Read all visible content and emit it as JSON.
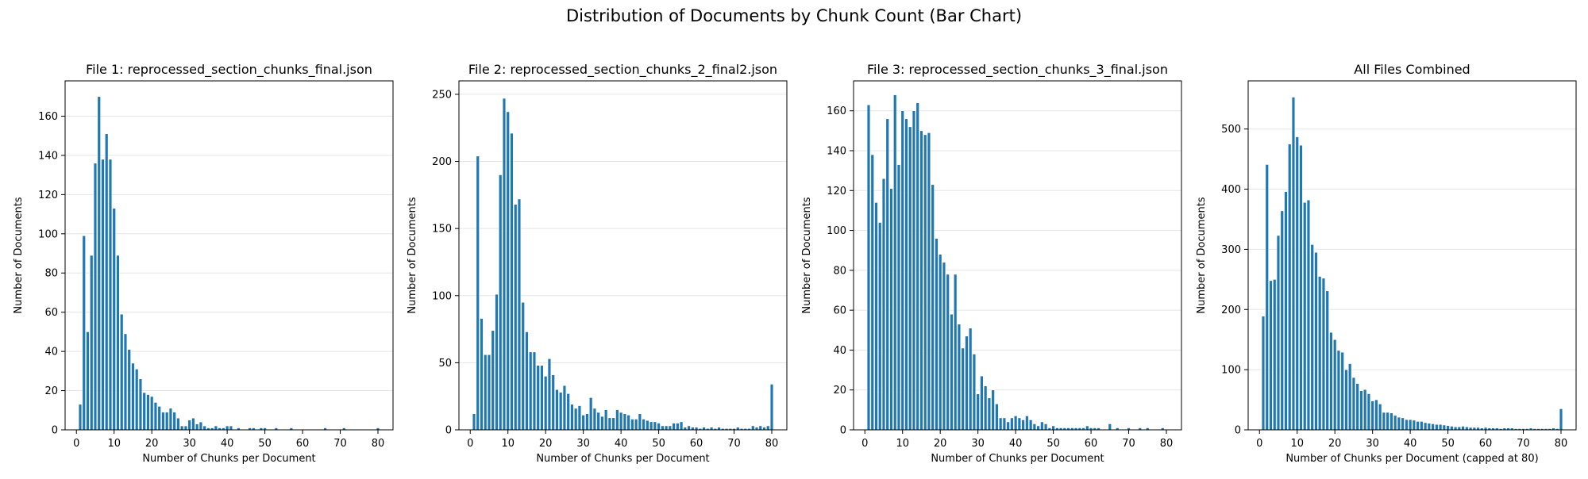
{
  "figure": {
    "title": "Distribution of Documents by Chunk Count (Bar Chart)",
    "bar_color": "#1f77b4",
    "grid_color": "#e5e5e5"
  },
  "chart_data": [
    {
      "type": "bar",
      "title": "File 1: reprocessed_section_chunks_final.json",
      "xlabel": "Number of Chunks per Document",
      "ylabel": "Number of Documents",
      "xlim": [
        -3,
        84
      ],
      "ylim": [
        0,
        178
      ],
      "xticks": [
        0,
        10,
        20,
        30,
        40,
        50,
        60,
        70,
        80
      ],
      "yticks": [
        0,
        20,
        40,
        60,
        80,
        100,
        120,
        140,
        160
      ],
      "grid": "y",
      "x": [
        1,
        2,
        3,
        4,
        5,
        6,
        7,
        8,
        9,
        10,
        11,
        12,
        13,
        14,
        15,
        16,
        17,
        18,
        19,
        20,
        21,
        22,
        23,
        24,
        25,
        26,
        27,
        28,
        29,
        30,
        31,
        32,
        33,
        34,
        35,
        36,
        37,
        38,
        39,
        40,
        41,
        43,
        46,
        47,
        49,
        50,
        53,
        57,
        66,
        71,
        80
      ],
      "values": [
        13,
        99,
        50,
        89,
        136,
        170,
        138,
        151,
        138,
        113,
        89,
        59,
        49,
        41,
        34,
        31,
        26,
        19,
        18,
        17,
        14,
        12,
        9,
        9,
        11,
        9,
        6,
        2,
        2,
        5,
        6,
        3,
        4,
        2,
        1,
        1,
        2,
        1,
        1,
        2,
        2,
        1,
        1,
        1,
        1,
        1,
        1,
        1,
        1,
        1,
        1
      ]
    },
    {
      "type": "bar",
      "title": "File 2: reprocessed_section_chunks_2_final2.json",
      "xlabel": "Number of Chunks per Document",
      "ylabel": "Number of Documents",
      "xlim": [
        -3,
        84
      ],
      "ylim": [
        0,
        260
      ],
      "xticks": [
        0,
        10,
        20,
        30,
        40,
        50,
        60,
        70,
        80
      ],
      "yticks": [
        0,
        50,
        100,
        150,
        200,
        250
      ],
      "grid": "y",
      "x": [
        1,
        2,
        3,
        4,
        5,
        6,
        7,
        8,
        9,
        10,
        11,
        12,
        13,
        14,
        15,
        16,
        17,
        18,
        19,
        20,
        21,
        22,
        23,
        24,
        25,
        26,
        27,
        28,
        29,
        30,
        31,
        32,
        33,
        34,
        35,
        36,
        37,
        38,
        39,
        40,
        41,
        42,
        43,
        44,
        45,
        46,
        47,
        48,
        49,
        50,
        51,
        52,
        53,
        54,
        55,
        56,
        57,
        58,
        59,
        60,
        61,
        62,
        63,
        64,
        65,
        66,
        67,
        68,
        69,
        70,
        71,
        72,
        73,
        74,
        75,
        76,
        77,
        78,
        79,
        80
      ],
      "values": [
        12,
        204,
        83,
        56,
        56,
        74,
        101,
        190,
        247,
        237,
        221,
        168,
        172,
        95,
        73,
        58,
        58,
        48,
        48,
        40,
        53,
        41,
        30,
        28,
        33,
        27,
        19,
        16,
        18,
        11,
        12,
        24,
        16,
        13,
        10,
        15,
        9,
        9,
        15,
        13,
        12,
        11,
        8,
        8,
        12,
        8,
        7,
        6,
        6,
        5,
        3,
        3,
        3,
        5,
        5,
        6,
        2,
        3,
        2,
        2,
        1,
        2,
        1,
        2,
        1,
        2,
        1,
        1,
        1,
        1,
        2,
        1,
        1,
        1,
        3,
        2,
        3,
        2,
        3,
        34
      ]
    },
    {
      "type": "bar",
      "title": "File 3: reprocessed_section_chunks_3_final.json",
      "xlabel": "Number of Chunks per Document",
      "ylabel": "Number of Documents",
      "xlim": [
        -3,
        84
      ],
      "ylim": [
        0,
        175
      ],
      "xticks": [
        0,
        10,
        20,
        30,
        40,
        50,
        60,
        70,
        80
      ],
      "yticks": [
        0,
        20,
        40,
        60,
        80,
        100,
        120,
        140,
        160
      ],
      "grid": "y",
      "x": [
        1,
        2,
        3,
        4,
        5,
        6,
        7,
        8,
        9,
        10,
        11,
        12,
        13,
        14,
        15,
        16,
        17,
        18,
        19,
        20,
        21,
        22,
        23,
        24,
        25,
        26,
        27,
        28,
        29,
        30,
        31,
        32,
        33,
        34,
        35,
        36,
        37,
        38,
        39,
        40,
        41,
        42,
        43,
        44,
        45,
        46,
        47,
        48,
        49,
        50,
        51,
        52,
        53,
        54,
        55,
        56,
        57,
        58,
        59,
        60,
        61,
        62,
        65,
        67,
        70,
        73,
        75,
        79
      ],
      "values": [
        163,
        138,
        114,
        104,
        126,
        156,
        121,
        168,
        133,
        160,
        156,
        152,
        160,
        164,
        150,
        148,
        149,
        123,
        96,
        88,
        84,
        78,
        58,
        78,
        53,
        41,
        47,
        51,
        38,
        18,
        27,
        22,
        16,
        20,
        13,
        6,
        6,
        4,
        6,
        7,
        6,
        5,
        7,
        5,
        3,
        2,
        4,
        3,
        1,
        2,
        1,
        1,
        1,
        1,
        1,
        1,
        1,
        1,
        2,
        1,
        1,
        1,
        3,
        1,
        1,
        1,
        1,
        1
      ]
    },
    {
      "type": "bar",
      "title": "All Files Combined",
      "xlabel": "Number of Chunks per Document (capped at 80)",
      "ylabel": "Number of Documents",
      "xlim": [
        -3,
        84
      ],
      "ylim": [
        0,
        580
      ],
      "xticks": [
        0,
        10,
        20,
        30,
        40,
        50,
        60,
        70,
        80
      ],
      "yticks": [
        0,
        100,
        200,
        300,
        400,
        500
      ],
      "grid": "y",
      "x": [
        1,
        2,
        3,
        4,
        5,
        6,
        7,
        8,
        9,
        10,
        11,
        12,
        13,
        14,
        15,
        16,
        17,
        18,
        19,
        20,
        21,
        22,
        23,
        24,
        25,
        26,
        27,
        28,
        29,
        30,
        31,
        32,
        33,
        34,
        35,
        36,
        37,
        38,
        39,
        40,
        41,
        42,
        43,
        44,
        45,
        46,
        47,
        48,
        49,
        50,
        51,
        52,
        53,
        54,
        55,
        56,
        57,
        58,
        59,
        60,
        61,
        62,
        63,
        64,
        65,
        66,
        67,
        68,
        69,
        70,
        71,
        72,
        73,
        74,
        75,
        76,
        77,
        78,
        79,
        80
      ],
      "values": [
        189,
        441,
        248,
        250,
        323,
        364,
        396,
        475,
        553,
        487,
        473,
        378,
        382,
        308,
        295,
        255,
        252,
        231,
        162,
        150,
        132,
        129,
        100,
        110,
        87,
        77,
        65,
        67,
        60,
        48,
        50,
        43,
        29,
        29,
        28,
        24,
        21,
        20,
        17,
        17,
        16,
        14,
        14,
        12,
        11,
        10,
        9,
        9,
        8,
        7,
        6,
        5,
        5,
        6,
        5,
        4,
        4,
        4,
        3,
        4,
        3,
        3,
        3,
        2,
        3,
        3,
        3,
        2,
        2,
        2,
        2,
        3,
        2,
        2,
        2,
        2,
        2,
        3,
        2,
        35
      ]
    }
  ]
}
